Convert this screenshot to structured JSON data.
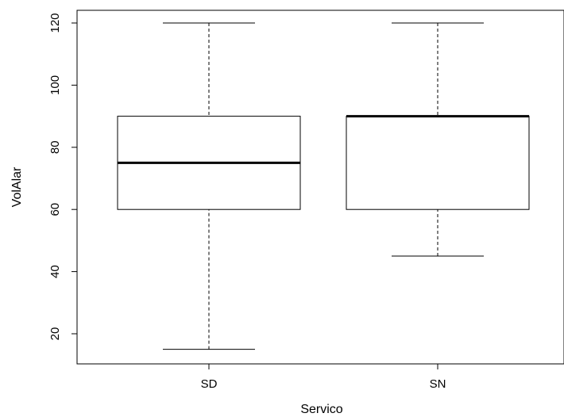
{
  "chart_data": {
    "type": "boxplot",
    "title": "",
    "xlabel": "Servico",
    "ylabel": "VolAlar",
    "ylim": [
      10,
      124
    ],
    "yticks": [
      20,
      40,
      60,
      80,
      100,
      120
    ],
    "categories": [
      "SD",
      "SN"
    ],
    "boxes": [
      {
        "category": "SD",
        "whisker_low": 15,
        "q1": 60,
        "median": 75,
        "q3": 90,
        "whisker_high": 120
      },
      {
        "category": "SN",
        "whisker_low": 45,
        "q1": 60,
        "median": 90,
        "q3": 90,
        "whisker_high": 120
      }
    ],
    "grid": false,
    "legend": "none"
  }
}
